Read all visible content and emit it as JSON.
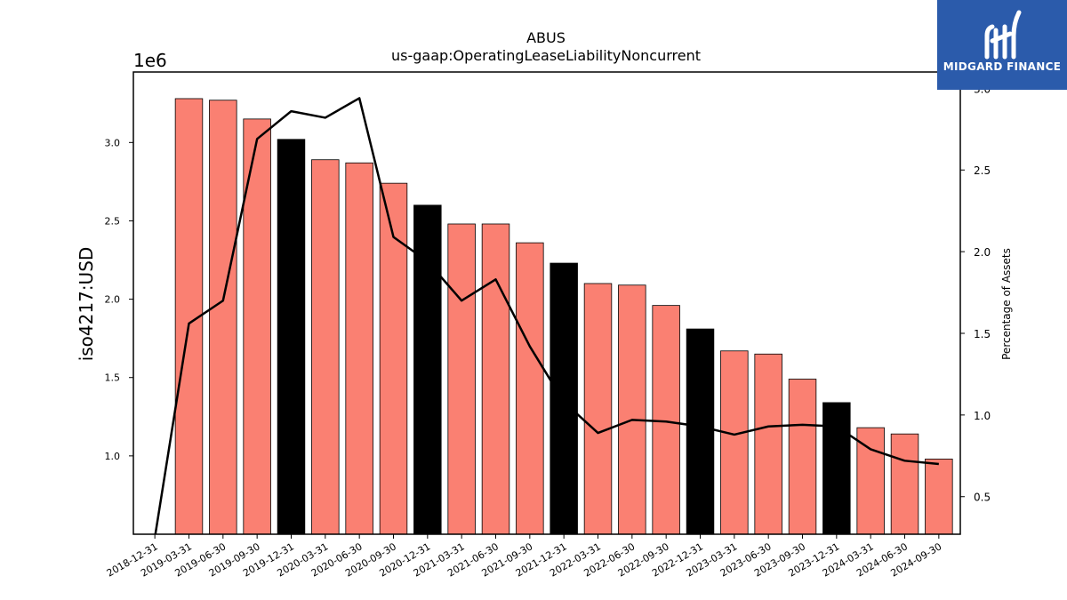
{
  "chart_data": {
    "type": "bar",
    "title": "ABUS",
    "subtitle": "us-gaap:OperatingLeaseLiabilityNoncurrent",
    "ylabel": "iso4217:USD",
    "y_offset_label": "1e6",
    "y2label": "Percentage of Assets",
    "categories": [
      "2018-12-31",
      "2019-03-31",
      "2019-06-30",
      "2019-09-30",
      "2019-12-31",
      "2020-03-31",
      "2020-06-30",
      "2020-09-30",
      "2020-12-31",
      "2021-03-31",
      "2021-06-30",
      "2021-09-30",
      "2021-12-31",
      "2022-03-31",
      "2022-06-30",
      "2022-09-30",
      "2022-12-31",
      "2023-03-31",
      "2023-06-30",
      "2023-09-30",
      "2023-12-31",
      "2024-03-31",
      "2024-06-30",
      "2024-09-30"
    ],
    "series": [
      {
        "type": "bar",
        "values": [
          null,
          3280000,
          3270000,
          3150000,
          3020000,
          2890000,
          2870000,
          2740000,
          2600000,
          2480000,
          2480000,
          2360000,
          2230000,
          2100000,
          2090000,
          1960000,
          1810000,
          1670000,
          1650000,
          1490000,
          1340000,
          1180000,
          1140000,
          980000
        ],
        "colors_note": "year-end (12-31) bars are black, others salmon"
      },
      {
        "type": "line",
        "axis": "right",
        "values": [
          0.25,
          1.56,
          1.7,
          2.69,
          2.86,
          2.82,
          2.94,
          2.09,
          1.94,
          1.7,
          1.83,
          1.42,
          1.08,
          0.89,
          0.97,
          0.96,
          0.93,
          0.88,
          0.93,
          0.94,
          0.93,
          0.79,
          0.72,
          0.7
        ]
      }
    ],
    "ylim": [
      500000,
      3450000
    ],
    "yticks": [
      1.0,
      1.5,
      2.0,
      2.5,
      3.0
    ],
    "y2lim": [
      0.27,
      3.1
    ],
    "y2ticks": [
      0.5,
      1.0,
      1.5,
      2.0,
      2.5
    ],
    "grid": false,
    "colors": {
      "bar": "#fa8072",
      "bar_year_end": "#000000",
      "line": "#000000"
    }
  },
  "logo": {
    "text": "MIDGARD FINANCE",
    "background": "#2b5bab"
  }
}
